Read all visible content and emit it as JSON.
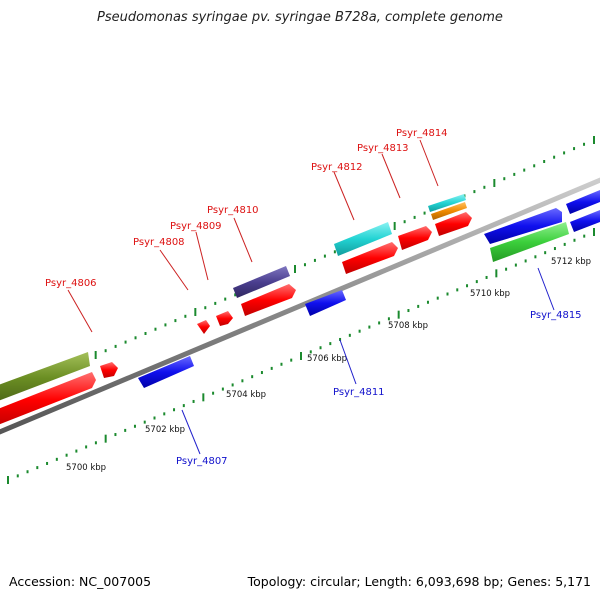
{
  "title": "Pseudomonas syringae pv. syringae B728a, complete genome",
  "footer": {
    "accession": "Accession: NC_007005",
    "stats": "Topology: circular; Length: 6,093,698 bp; Genes: 5,171"
  },
  "colors": {
    "backbone": "#8a8a8a",
    "tick": "#1b8a2e",
    "label_forward": "#dd1111",
    "label_reverse": "#1111cc",
    "label_leader": "#cc2222",
    "label_leader_reverse": "#2222cc"
  },
  "axis": {
    "unit": "kbp",
    "tick_labels": [
      {
        "kbp": 5700,
        "text": "5700 kbp"
      },
      {
        "kbp": 5702,
        "text": "5702 kbp"
      },
      {
        "kbp": 5704,
        "text": "5704 kbp"
      },
      {
        "kbp": 5706,
        "text": "5706 kbp"
      },
      {
        "kbp": 5708,
        "text": "5708 kbp"
      },
      {
        "kbp": 5710,
        "text": "5710 kbp"
      },
      {
        "kbp": 5712,
        "text": "5712 kbp"
      }
    ]
  },
  "genes": [
    {
      "id": "Psyr_4806",
      "strand": "+",
      "color": "#ff0000",
      "label": "Psyr_4806"
    },
    {
      "id": "Psyr_4807",
      "strand": "-",
      "color": "#1010ee",
      "label": "Psyr_4807"
    },
    {
      "id": "Psyr_4808",
      "strand": "+",
      "color": "#ff0000",
      "label": "Psyr_4808"
    },
    {
      "id": "Psyr_4809",
      "strand": "+",
      "color": "#ff0000",
      "label": "Psyr_4809"
    },
    {
      "id": "Psyr_4810",
      "strand": "+",
      "color": "#ff0000",
      "label": "Psyr_4810"
    },
    {
      "id": "Psyr_4811",
      "strand": "-",
      "color": "#1010ee",
      "label": "Psyr_4811"
    },
    {
      "id": "Psyr_4812",
      "strand": "+",
      "color": "#ff0000",
      "label": "Psyr_4812"
    },
    {
      "id": "Psyr_4813",
      "strand": "+",
      "color": "#ff0000",
      "label": "Psyr_4813"
    },
    {
      "id": "Psyr_4814",
      "strand": "+",
      "color": "#ff0000",
      "label": "Psyr_4814"
    },
    {
      "id": "Psyr_4815",
      "strand": "-",
      "color": "#1010ee",
      "label": "Psyr_4815"
    }
  ],
  "feature_colors": {
    "olive": "#6b8e23",
    "slate": "#4b3f8f",
    "cyan": "#22d3d3",
    "orange": "#f08a00",
    "green": "#3ccf3c",
    "blue": "#1010ee"
  }
}
